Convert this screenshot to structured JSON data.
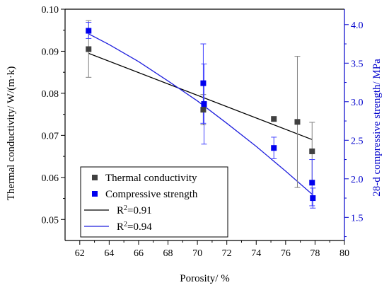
{
  "chart_data": {
    "type": "scatter",
    "x": [
      62.6,
      70.4,
      70.45,
      75.2,
      76.8,
      77.8,
      77.85
    ],
    "xlabel": "Porosity/ %",
    "ylabel_left": "Thermal conductivity/ W/(m·k)",
    "ylabel_right": "28-d compressive strength/ MPa",
    "xlim": [
      61,
      80
    ],
    "ylim_left": [
      0.045,
      0.1
    ],
    "ylim_right": [
      1.2,
      4.2
    ],
    "x_ticks": [
      62,
      64,
      66,
      68,
      70,
      72,
      74,
      76,
      78,
      80
    ],
    "y_ticks_left": [
      0.05,
      0.06,
      0.07,
      0.08,
      0.09,
      0.1
    ],
    "y_ticks_right": [
      1.5,
      2.0,
      2.5,
      3.0,
      3.5,
      4.0
    ],
    "x_tick_labels": [
      "62",
      "64",
      "66",
      "68",
      "70",
      "72",
      "74",
      "76",
      "78",
      "80"
    ],
    "y_tick_labels_left": [
      "0.05",
      "0.06",
      "0.07",
      "0.08",
      "0.09",
      "0.10"
    ],
    "y_tick_labels_right": [
      "1.5",
      "2.0",
      "2.5",
      "3.0",
      "3.5",
      "4.0"
    ],
    "series": [
      {
        "name": "Thermal conductivity",
        "axis": "left",
        "color": "#404040",
        "marker": "square",
        "points": [
          {
            "x": 62.6,
            "y": 0.0905,
            "err_lo": 0.0838,
            "err_hi": 0.0973
          },
          {
            "x": 70.4,
            "y": 0.0761,
            "err_lo": 0.0725,
            "err_hi": 0.0797
          },
          {
            "x": 75.2,
            "y": 0.0739,
            "err_lo": null,
            "err_hi": null
          },
          {
            "x": 76.8,
            "y": 0.0732,
            "err_lo": 0.0576,
            "err_hi": 0.0888
          },
          {
            "x": 77.8,
            "y": 0.0662,
            "err_lo": 0.0593,
            "err_hi": 0.0731
          }
        ],
        "fit": {
          "label": "R2=0.91",
          "x": [
            62.6,
            77.8
          ],
          "y": [
            0.0895,
            0.069
          ]
        }
      },
      {
        "name": "Compressive strength",
        "axis": "right",
        "color": "#0000ee",
        "marker": "square",
        "points": [
          {
            "x": 62.6,
            "y": 3.92,
            "err_lo": 3.82,
            "err_hi": 4.03
          },
          {
            "x": 70.4,
            "y": 3.24,
            "err_lo": 2.72,
            "err_hi": 3.75
          },
          {
            "x": 70.45,
            "y": 2.97,
            "err_lo": 2.45,
            "err_hi": 3.49
          },
          {
            "x": 75.2,
            "y": 2.4,
            "err_lo": 2.26,
            "err_hi": 2.54
          },
          {
            "x": 77.8,
            "y": 1.95,
            "err_lo": 1.65,
            "err_hi": 2.25
          },
          {
            "x": 77.85,
            "y": 1.75,
            "err_lo": 1.62,
            "err_hi": 1.88
          }
        ],
        "fit": {
          "label": "R2=0.94",
          "x": [
            62.6,
            64,
            66,
            68,
            70,
            72,
            74,
            76,
            77.8
          ],
          "y": [
            3.88,
            3.74,
            3.52,
            3.27,
            3.01,
            2.72,
            2.42,
            2.1,
            1.8
          ]
        }
      }
    ],
    "legend": {
      "position": "bottom-left",
      "entries": [
        {
          "label": "Thermal conductivity",
          "kind": "marker",
          "color": "#404040"
        },
        {
          "label": "Compressive strength",
          "kind": "marker",
          "color": "#0000ee"
        },
        {
          "label_base": "R",
          "label_sup": "2",
          "label_rest": "=0.91",
          "kind": "line",
          "color": "#000000"
        },
        {
          "label_base": "R",
          "label_sup": "2",
          "label_rest": "=0.94",
          "kind": "line",
          "color": "#1f1fdd"
        }
      ]
    },
    "grid": false
  }
}
